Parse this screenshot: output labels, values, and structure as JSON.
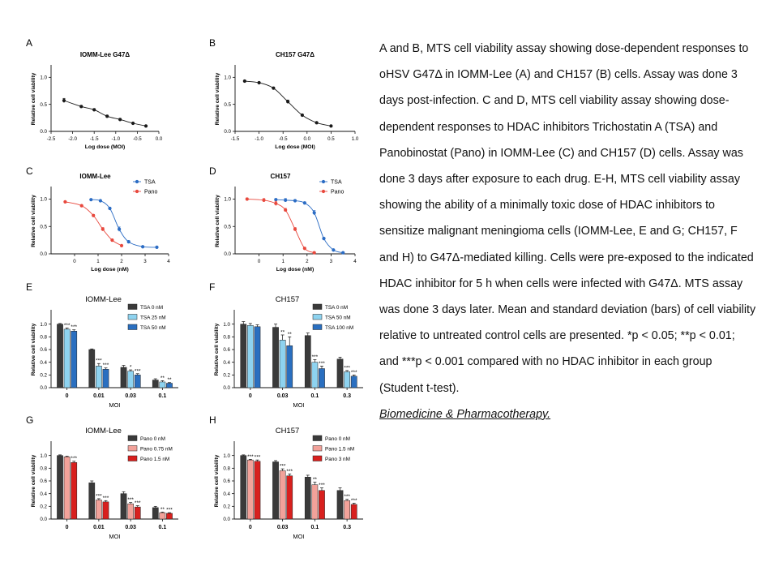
{
  "caption": {
    "body": "A and B, MTS cell viability assay showing dose-dependent responses to oHSV G47Δ in IOMM-Lee (A) and CH157 (B) cells. Assay was done 3 days post-infection. C and D, MTS cell viability assay showing dose-dependent responses to HDAC inhibitors Trichostatin A (TSA) and Panobinostat (Pano) in IOMM-Lee (C) and CH157 (D) cells. Assay was done 3 days after exposure to each drug. E-H, MTS cell viability assay showing the ability of a minimally toxic dose of HDAC inhibitors to sensitize malignant meningioma cells (IOMM-Lee, E and G; CH157, F and H) to G47Δ-mediated killing. Cells were pre-exposed to the indicated HDAC inhibitor for 5 h when cells were infected with G47Δ. MTS assay was done 3 days later. Mean and standard deviation (bars) of cell viability relative to untreated control cells are presented. *p < 0.05; **p < 0.01; and ***p < 0.001 compared with no HDAC inhibitor in each group (Student t-test).",
    "source": "Biomedicine & Pharmacotherapy."
  },
  "colors": {
    "line_black": "#1a1a1a",
    "tsa_blue": "#2b6cc4",
    "pano_red": "#e8483d",
    "bar_dark": "#3a3a3a",
    "bar_light_blue": "#8ed3f0",
    "bar_blue": "#2a6fc0",
    "bar_light_red": "#f2a29a",
    "bar_red": "#d8201e"
  },
  "chart_data": [
    {
      "panel": "A",
      "type": "line",
      "title": "IOMM-Lee G47Δ",
      "xlabel": "Log dose (MOI)",
      "ylabel": "Relative cell viability",
      "xlim": [
        -2.5,
        0
      ],
      "ylim": [
        0,
        1.2
      ],
      "xticks": [
        -2.5,
        -2.0,
        -1.5,
        -1.0,
        -0.5,
        0.0
      ],
      "yticks": [
        0.0,
        0.5,
        1.0
      ],
      "series": [
        {
          "color_key": "line_black",
          "x": [
            -2.2,
            -1.8,
            -1.5,
            -1.2,
            -0.9,
            -0.6,
            -0.3
          ],
          "y": [
            0.57,
            0.46,
            0.4,
            0.28,
            0.22,
            0.15,
            0.1
          ],
          "err": [
            0.04,
            0.02,
            0.02,
            0.02,
            0.02,
            0.01,
            0.01
          ]
        }
      ]
    },
    {
      "panel": "B",
      "type": "line",
      "title": "CH157 G47Δ",
      "xlabel": "Log dose (MOI)",
      "ylabel": "Relative cell viability",
      "xlim": [
        -1.5,
        1.0
      ],
      "ylim": [
        0,
        1.2
      ],
      "xticks": [
        -1.5,
        -1.0,
        -0.5,
        0.0,
        0.5,
        1.0
      ],
      "yticks": [
        0.0,
        0.5,
        1.0
      ],
      "series": [
        {
          "color_key": "line_black",
          "x": [
            -1.3,
            -1.0,
            -0.7,
            -0.4,
            -0.1,
            0.2,
            0.5
          ],
          "y": [
            0.93,
            0.9,
            0.8,
            0.55,
            0.3,
            0.16,
            0.1
          ],
          "err": [
            0.01,
            0.01,
            0.02,
            0.03,
            0.02,
            0.01,
            0.01
          ]
        }
      ]
    },
    {
      "panel": "C",
      "type": "line",
      "title": "IOMM-Lee",
      "xlabel": "Log dose (nM)",
      "ylabel": "Relative cell viability",
      "xlim": [
        -1,
        4
      ],
      "ylim": [
        0,
        1.2
      ],
      "xticks": [
        0,
        1,
        2,
        3,
        4
      ],
      "yticks": [
        0.0,
        0.5,
        1.0
      ],
      "legend": "top-right",
      "series": [
        {
          "name": "TSA",
          "color_key": "tsa_blue",
          "x": [
            0.7,
            1.1,
            1.5,
            1.9,
            2.3,
            2.9,
            3.5
          ],
          "y": [
            0.99,
            0.97,
            0.83,
            0.45,
            0.22,
            0.13,
            0.12
          ],
          "err": [
            0.01,
            0.01,
            0.02,
            0.04,
            0.02,
            0.01,
            0.01
          ]
        },
        {
          "name": "Pano",
          "color_key": "pano_red",
          "x": [
            -0.4,
            0.3,
            0.8,
            1.2,
            1.6,
            2.0
          ],
          "y": [
            0.95,
            0.88,
            0.7,
            0.45,
            0.25,
            0.15
          ],
          "err": [
            0.01,
            0.01,
            0.02,
            0.03,
            0.02,
            0.01
          ]
        }
      ]
    },
    {
      "panel": "D",
      "type": "line",
      "title": "CH157",
      "xlabel": "Log dose (nM)",
      "ylabel": "Relative cell viability",
      "xlim": [
        -1,
        4
      ],
      "ylim": [
        0,
        1.2
      ],
      "xticks": [
        0,
        1,
        2,
        3,
        4
      ],
      "yticks": [
        0.0,
        0.5,
        1.0
      ],
      "legend": "top-right",
      "series": [
        {
          "name": "TSA",
          "color_key": "tsa_blue",
          "x": [
            0.7,
            1.1,
            1.5,
            1.9,
            2.3,
            2.7,
            3.1,
            3.5
          ],
          "y": [
            0.99,
            0.98,
            0.97,
            0.93,
            0.75,
            0.28,
            0.07,
            0.02
          ],
          "err": [
            0.02,
            0.03,
            0.02,
            0.02,
            0.04,
            0.02,
            0.01,
            0.01
          ]
        },
        {
          "name": "Pano",
          "color_key": "pano_red",
          "x": [
            -0.5,
            0.2,
            0.7,
            1.1,
            1.5,
            1.9,
            2.3
          ],
          "y": [
            1.0,
            0.98,
            0.92,
            0.8,
            0.45,
            0.1,
            0.02
          ],
          "err": [
            0.02,
            0.03,
            0.04,
            0.03,
            0.03,
            0.02,
            0.01
          ]
        }
      ]
    },
    {
      "panel": "E",
      "type": "bar",
      "title": "IOMM-Lee",
      "xlabel": "MOI",
      "ylabel": "Relative cell viability",
      "ylim": [
        0,
        1.2
      ],
      "yticks": [
        0.0,
        0.2,
        0.4,
        0.6,
        0.8,
        1.0
      ],
      "categories": [
        "0",
        "0.01",
        "0.03",
        "0.1"
      ],
      "legend": "top-right",
      "series": [
        {
          "name": "TSA 0 nM",
          "color_key": "bar_dark",
          "values": [
            1.0,
            0.6,
            0.32,
            0.12
          ],
          "err": [
            0.01,
            0.01,
            0.03,
            0.02
          ],
          "sig": [
            "",
            "",
            "",
            ""
          ]
        },
        {
          "name": "TSA 25 nM",
          "color_key": "bar_light_blue",
          "values": [
            0.92,
            0.34,
            0.26,
            0.09
          ],
          "err": [
            0.02,
            0.04,
            0.02,
            0.02
          ],
          "sig": [
            "***",
            "***",
            "*",
            "**"
          ]
        },
        {
          "name": "TSA 50 nM",
          "color_key": "bar_blue",
          "values": [
            0.89,
            0.29,
            0.2,
            0.07
          ],
          "err": [
            0.02,
            0.02,
            0.02,
            0.01
          ],
          "sig": [
            "***",
            "***",
            "***",
            "**"
          ]
        }
      ]
    },
    {
      "panel": "F",
      "type": "bar",
      "title": "CH157",
      "xlabel": "MOI",
      "ylabel": "Relative cell viability",
      "ylim": [
        0,
        1.2
      ],
      "yticks": [
        0.0,
        0.2,
        0.4,
        0.6,
        0.8,
        1.0
      ],
      "categories": [
        "0",
        "0.03",
        "0.1",
        "0.3"
      ],
      "legend": "top-right",
      "series": [
        {
          "name": "TSA 0 nM",
          "color_key": "bar_dark",
          "values": [
            1.0,
            0.95,
            0.82,
            0.45
          ],
          "err": [
            0.04,
            0.05,
            0.04,
            0.03
          ],
          "sig": [
            "",
            "",
            "",
            ""
          ]
        },
        {
          "name": "TSA 50 nM",
          "color_key": "bar_light_blue",
          "values": [
            0.98,
            0.75,
            0.4,
            0.25
          ],
          "err": [
            0.03,
            0.08,
            0.04,
            0.02
          ],
          "sig": [
            "",
            "**",
            "***",
            "***"
          ]
        },
        {
          "name": "TSA 100 nM",
          "color_key": "bar_blue",
          "values": [
            0.96,
            0.66,
            0.3,
            0.18
          ],
          "err": [
            0.03,
            0.14,
            0.04,
            0.02
          ],
          "sig": [
            "",
            "**",
            "***",
            "***"
          ]
        }
      ]
    },
    {
      "panel": "G",
      "type": "bar",
      "title": "IOMM-Lee",
      "xlabel": "MOI",
      "ylabel": "Relative cell viability",
      "ylim": [
        0,
        1.2
      ],
      "yticks": [
        0.0,
        0.2,
        0.4,
        0.6,
        0.8,
        1.0
      ],
      "categories": [
        "0",
        "0.01",
        "0.03",
        "0.1"
      ],
      "legend": "top-right",
      "series": [
        {
          "name": "Pano 0 nM",
          "color_key": "bar_dark",
          "values": [
            1.0,
            0.57,
            0.4,
            0.18
          ],
          "err": [
            0.01,
            0.03,
            0.03,
            0.02
          ],
          "sig": [
            "",
            "",
            "",
            ""
          ]
        },
        {
          "name": "Pano 0.75 nM",
          "color_key": "bar_light_red",
          "values": [
            0.98,
            0.3,
            0.24,
            0.1
          ],
          "err": [
            0.01,
            0.02,
            0.02,
            0.01
          ],
          "sig": [
            "",
            "***",
            "***",
            "**"
          ]
        },
        {
          "name": "Pano 1.5 nM",
          "color_key": "bar_red",
          "values": [
            0.89,
            0.27,
            0.19,
            0.09
          ],
          "err": [
            0.02,
            0.02,
            0.02,
            0.01
          ],
          "sig": [
            "***",
            "***",
            "***",
            "***"
          ]
        }
      ]
    },
    {
      "panel": "H",
      "type": "bar",
      "title": "CH157",
      "xlabel": "MOI",
      "ylabel": "Relative cell viability",
      "ylim": [
        0,
        1.2
      ],
      "yticks": [
        0.0,
        0.2,
        0.4,
        0.6,
        0.8,
        1.0
      ],
      "categories": [
        "0",
        "0.03",
        "0.1",
        "0.3"
      ],
      "legend": "top-right",
      "series": [
        {
          "name": "Pano 0 nM",
          "color_key": "bar_dark",
          "values": [
            1.0,
            0.9,
            0.66,
            0.45
          ],
          "err": [
            0.01,
            0.02,
            0.03,
            0.04
          ],
          "sig": [
            "",
            "",
            "",
            ""
          ]
        },
        {
          "name": "Pano 1.5 nM",
          "color_key": "bar_light_red",
          "values": [
            0.93,
            0.76,
            0.54,
            0.29
          ],
          "err": [
            0.01,
            0.03,
            0.04,
            0.02
          ],
          "sig": [
            "***",
            "***",
            "**",
            "***"
          ]
        },
        {
          "name": "Pano 3 nM",
          "color_key": "bar_red",
          "values": [
            0.91,
            0.68,
            0.45,
            0.23
          ],
          "err": [
            0.02,
            0.03,
            0.04,
            0.02
          ],
          "sig": [
            "***",
            "***",
            "***",
            "***"
          ]
        }
      ]
    }
  ]
}
